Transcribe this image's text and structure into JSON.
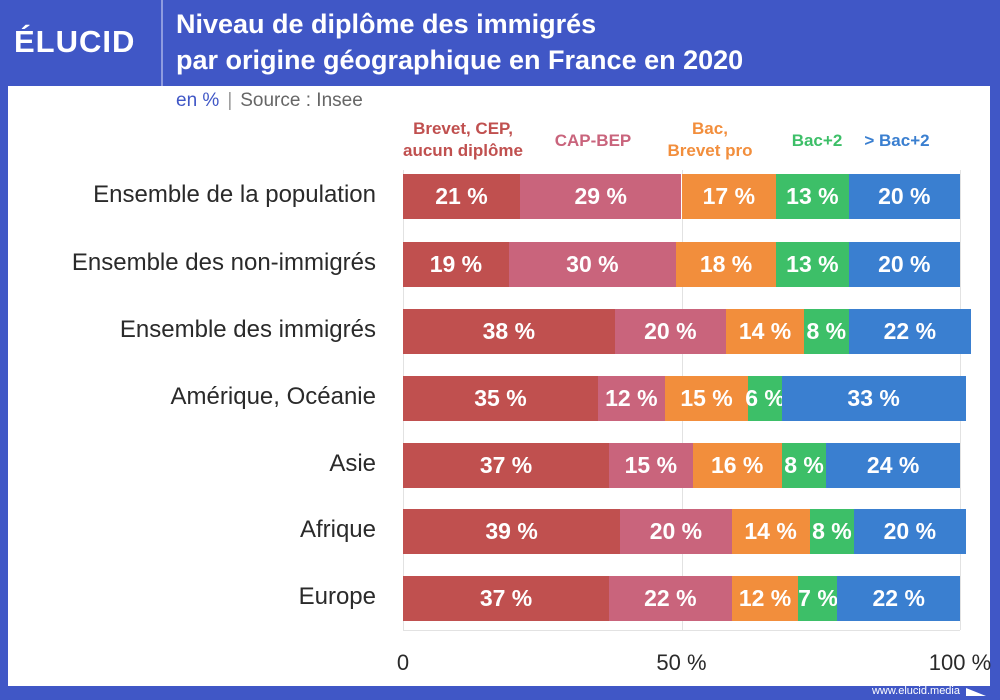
{
  "header": {
    "logo": "ÉLUCID",
    "title_line1": "Niveau de diplôme des immigrés",
    "title_line2": "par origine géographique en France en 2020",
    "unit": "en %",
    "separator": "|",
    "source": "Source : Insee"
  },
  "footer": {
    "url": "www.elucid.media"
  },
  "colors": {
    "frame": "#4057c6",
    "brevet": "#c0504f",
    "cap": "#c9647c",
    "bac": "#f28e3c",
    "bac2": "#3dbf68",
    "sup": "#3a7fd0"
  },
  "chart_data": {
    "type": "bar",
    "orientation": "horizontal-stacked",
    "title": "Niveau de diplôme des immigrés par origine géographique en France en 2020",
    "subtitle": "en % | Source : Insee",
    "categories": [
      "Ensemble de la population",
      "Ensemble des non-immigrés",
      "Ensemble des immigrés",
      "Amérique, Océanie",
      "Asie",
      "Afrique",
      "Europe"
    ],
    "series": [
      {
        "name": "Brevet, CEP, aucun diplôme",
        "legend_lines": [
          "Brevet, CEP,",
          "aucun diplôme"
        ],
        "color": "#c0504f",
        "values": [
          21,
          19,
          38,
          35,
          37,
          39,
          37
        ]
      },
      {
        "name": "CAP-BEP",
        "legend_lines": [
          "CAP-BEP"
        ],
        "color": "#c9647c",
        "values": [
          29,
          30,
          20,
          12,
          15,
          20,
          22
        ]
      },
      {
        "name": "Bac, Brevet pro",
        "legend_lines": [
          "Bac,",
          "Brevet pro"
        ],
        "color": "#f28e3c",
        "values": [
          17,
          18,
          14,
          15,
          16,
          14,
          12
        ]
      },
      {
        "name": "Bac+2",
        "legend_lines": [
          "Bac+2"
        ],
        "color": "#3dbf68",
        "values": [
          13,
          13,
          8,
          6,
          8,
          8,
          7
        ]
      },
      {
        "name": "> Bac+2",
        "legend_lines": [
          "> Bac+2"
        ],
        "color": "#3a7fd0",
        "values": [
          20,
          20,
          22,
          33,
          24,
          20,
          22
        ]
      }
    ],
    "value_suffix": " %",
    "xlim": [
      0,
      100
    ],
    "xticks": [
      {
        "value": 0,
        "label": "0"
      },
      {
        "value": 50,
        "label": "50 %"
      },
      {
        "value": 100,
        "label": "100 %"
      }
    ],
    "grid": true,
    "legend_position": "top"
  }
}
